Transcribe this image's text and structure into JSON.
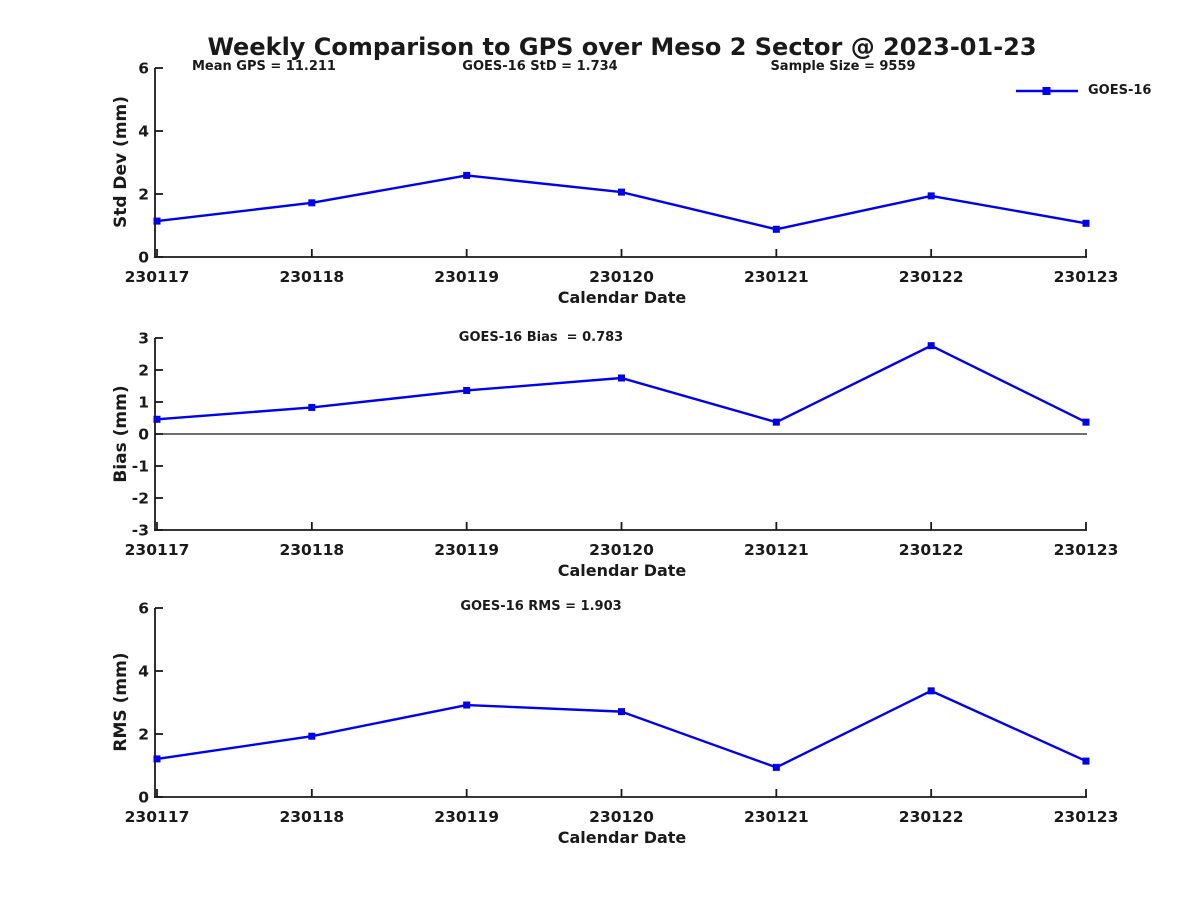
{
  "title": "Weekly Comparison to GPS over Meso 2 Sector @ 2023-01-23",
  "annotations": {
    "mean_gps": "Mean GPS = 11.211",
    "goes16_std": "GOES-16 StD = 1.734",
    "sample_size": "Sample Size = 9559"
  },
  "legend": {
    "label": "GOES-16",
    "position": "top-right"
  },
  "colors": {
    "line": "#0000ee",
    "axis": "#1a1a1a",
    "zero_line": "#1a1a1a",
    "text": "#1a1a1a",
    "background": "#ffffff"
  },
  "chart_data": [
    {
      "type": "line",
      "title": "",
      "xlabel": "Calendar Date",
      "ylabel": "Std Dev (mm)",
      "categories": [
        "230117",
        "230118",
        "230119",
        "230120",
        "230121",
        "230122",
        "230123"
      ],
      "series": [
        {
          "name": "GOES-16",
          "values": [
            1.14,
            1.72,
            2.59,
            2.06,
            0.88,
            1.94,
            1.07
          ]
        }
      ],
      "ylim": [
        0,
        6
      ],
      "yticks": [
        0,
        2,
        4,
        6
      ],
      "grid": false,
      "zero_line": false,
      "legend_position": "top-right",
      "marker": "square"
    },
    {
      "type": "line",
      "title": "GOES-16 Bias  = 0.783",
      "xlabel": "Calendar Date",
      "ylabel": "Bias (mm)",
      "categories": [
        "230117",
        "230118",
        "230119",
        "230120",
        "230121",
        "230122",
        "230123"
      ],
      "series": [
        {
          "name": "GOES-16",
          "values": [
            0.46,
            0.83,
            1.36,
            1.75,
            0.37,
            2.76,
            0.37
          ]
        }
      ],
      "ylim": [
        -3,
        3
      ],
      "yticks": [
        -3,
        -2,
        -1,
        0,
        1,
        2,
        3
      ],
      "grid": false,
      "zero_line": true,
      "legend_position": "none",
      "marker": "square"
    },
    {
      "type": "line",
      "title": "GOES-16 RMS = 1.903",
      "xlabel": "Calendar Date",
      "ylabel": "RMS (mm)",
      "categories": [
        "230117",
        "230118",
        "230119",
        "230120",
        "230121",
        "230122",
        "230123"
      ],
      "series": [
        {
          "name": "GOES-16",
          "values": [
            1.21,
            1.93,
            2.92,
            2.71,
            0.94,
            3.37,
            1.14
          ]
        }
      ],
      "ylim": [
        0,
        6
      ],
      "yticks": [
        0,
        2,
        4,
        6
      ],
      "grid": false,
      "zero_line": false,
      "legend_position": "none",
      "marker": "square"
    }
  ]
}
